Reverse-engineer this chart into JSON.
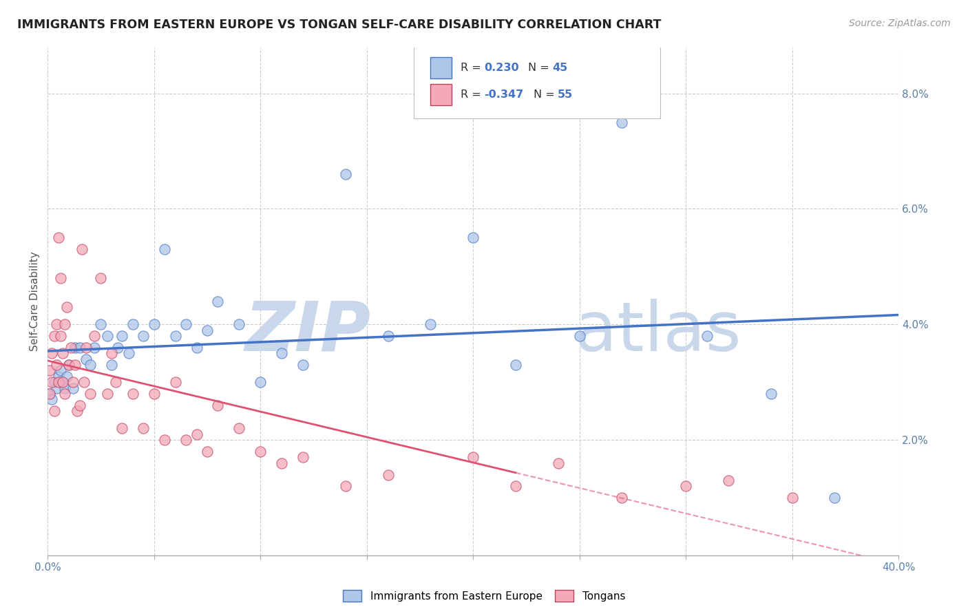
{
  "title": "IMMIGRANTS FROM EASTERN EUROPE VS TONGAN SELF-CARE DISABILITY CORRELATION CHART",
  "source": "Source: ZipAtlas.com",
  "ylabel": "Self-Care Disability",
  "ylabel_right_ticks": [
    "2.0%",
    "4.0%",
    "6.0%",
    "8.0%"
  ],
  "ylabel_right_vals": [
    0.02,
    0.04,
    0.06,
    0.08
  ],
  "xlim": [
    0.0,
    0.4
  ],
  "ylim": [
    0.0,
    0.088
  ],
  "legend1_label": "R =  0.230   N = 45",
  "legend2_label": "R = -0.347   N = 55",
  "blue_fill": "#aec6e8",
  "blue_edge": "#4472c4",
  "pink_fill": "#f4a8b8",
  "pink_edge": "#c04060",
  "blue_line": "#4472c4",
  "pink_line": "#e05070",
  "background_color": "#ffffff",
  "grid_color": "#cccccc",
  "blue_scatter_x": [
    0.001,
    0.002,
    0.003,
    0.004,
    0.005,
    0.006,
    0.007,
    0.008,
    0.009,
    0.01,
    0.012,
    0.013,
    0.015,
    0.018,
    0.02,
    0.022,
    0.025,
    0.028,
    0.03,
    0.033,
    0.035,
    0.038,
    0.04,
    0.045,
    0.05,
    0.055,
    0.06,
    0.065,
    0.07,
    0.075,
    0.08,
    0.09,
    0.1,
    0.11,
    0.12,
    0.14,
    0.16,
    0.18,
    0.2,
    0.22,
    0.25,
    0.27,
    0.31,
    0.34,
    0.37
  ],
  "blue_scatter_y": [
    0.028,
    0.027,
    0.03,
    0.029,
    0.031,
    0.032,
    0.03,
    0.029,
    0.031,
    0.033,
    0.029,
    0.036,
    0.036,
    0.034,
    0.033,
    0.036,
    0.04,
    0.038,
    0.033,
    0.036,
    0.038,
    0.035,
    0.04,
    0.038,
    0.04,
    0.053,
    0.038,
    0.04,
    0.036,
    0.039,
    0.044,
    0.04,
    0.03,
    0.035,
    0.033,
    0.066,
    0.038,
    0.04,
    0.055,
    0.033,
    0.038,
    0.075,
    0.038,
    0.028,
    0.01
  ],
  "pink_scatter_x": [
    0.001,
    0.001,
    0.002,
    0.002,
    0.003,
    0.003,
    0.004,
    0.004,
    0.005,
    0.005,
    0.006,
    0.006,
    0.007,
    0.007,
    0.008,
    0.008,
    0.009,
    0.01,
    0.011,
    0.012,
    0.013,
    0.014,
    0.015,
    0.016,
    0.017,
    0.018,
    0.02,
    0.022,
    0.025,
    0.028,
    0.03,
    0.032,
    0.035,
    0.04,
    0.045,
    0.05,
    0.055,
    0.06,
    0.065,
    0.07,
    0.075,
    0.08,
    0.09,
    0.1,
    0.11,
    0.12,
    0.14,
    0.16,
    0.2,
    0.22,
    0.24,
    0.27,
    0.3,
    0.32,
    0.35
  ],
  "pink_scatter_y": [
    0.032,
    0.028,
    0.035,
    0.03,
    0.038,
    0.025,
    0.04,
    0.033,
    0.03,
    0.055,
    0.038,
    0.048,
    0.035,
    0.03,
    0.04,
    0.028,
    0.043,
    0.033,
    0.036,
    0.03,
    0.033,
    0.025,
    0.026,
    0.053,
    0.03,
    0.036,
    0.028,
    0.038,
    0.048,
    0.028,
    0.035,
    0.03,
    0.022,
    0.028,
    0.022,
    0.028,
    0.02,
    0.03,
    0.02,
    0.021,
    0.018,
    0.026,
    0.022,
    0.018,
    0.016,
    0.017,
    0.012,
    0.014,
    0.017,
    0.012,
    0.016,
    0.01,
    0.012,
    0.013,
    0.01
  ]
}
